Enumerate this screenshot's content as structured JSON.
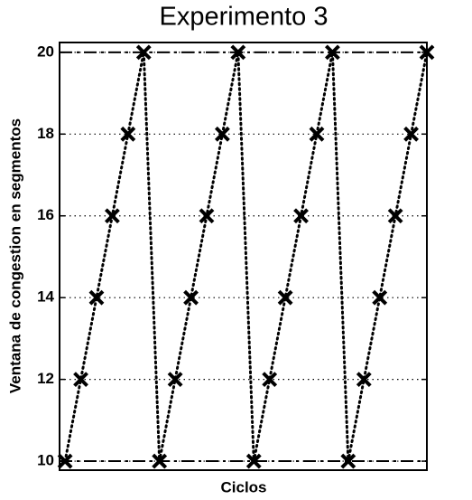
{
  "chart_data": {
    "type": "line",
    "title": "Experimento 3",
    "xlabel": "Ciclos",
    "ylabel": "Ventana de congestion en segmentos",
    "x": [
      1,
      2,
      3,
      4,
      5,
      6,
      7,
      8,
      9,
      10,
      11,
      12,
      13,
      14,
      15,
      16,
      17,
      18,
      19,
      20,
      21,
      22,
      23,
      24
    ],
    "series": [
      {
        "color": "#000000",
        "marker": "x",
        "linestyle": "dotted",
        "values": [
          10,
          12,
          14,
          16,
          18,
          20,
          10,
          12,
          14,
          16,
          18,
          20,
          10,
          12,
          14,
          16,
          18,
          20,
          10,
          12,
          14,
          16,
          18,
          20
        ]
      }
    ],
    "xlim": [
      0.65,
      24
    ],
    "ylim": [
      9.78,
      20.24
    ],
    "yticks": [
      10,
      12,
      14,
      16,
      18,
      20
    ],
    "grid": true,
    "hlines": [
      10,
      20
    ]
  }
}
